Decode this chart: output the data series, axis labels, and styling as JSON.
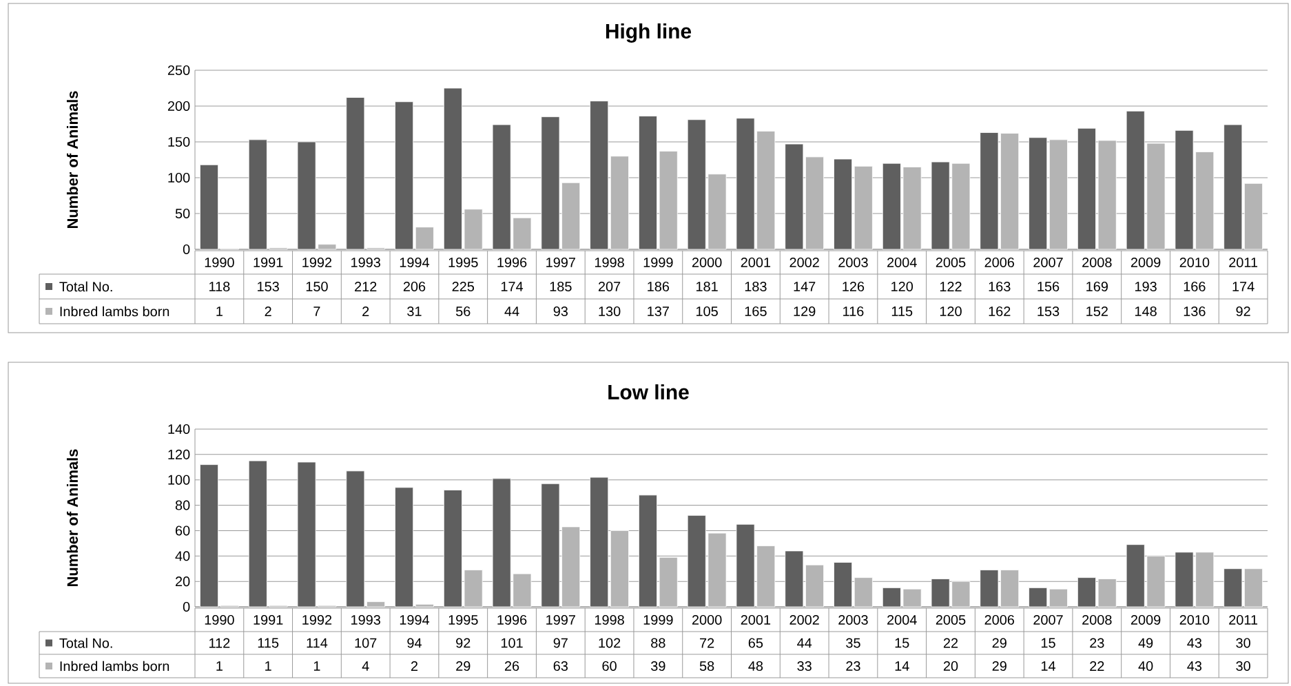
{
  "chart_data": [
    {
      "type": "bar",
      "title": "High line",
      "ylabel": "Number of Animals",
      "categories": [
        "1990",
        "1991",
        "1992",
        "1993",
        "1994",
        "1995",
        "1996",
        "1997",
        "1998",
        "1999",
        "2000",
        "2001",
        "2002",
        "2003",
        "2004",
        "2005",
        "2006",
        "2007",
        "2008",
        "2009",
        "2010",
        "2011"
      ],
      "series": [
        {
          "name": "Total No.",
          "color": "#5f5f5f",
          "values": [
            118,
            153,
            150,
            212,
            206,
            225,
            174,
            185,
            207,
            186,
            181,
            183,
            147,
            126,
            120,
            122,
            163,
            156,
            169,
            193,
            166,
            174
          ]
        },
        {
          "name": "Inbred lambs born",
          "color": "#b4b4b4",
          "values": [
            1,
            2,
            7,
            2,
            31,
            56,
            44,
            93,
            130,
            137,
            105,
            165,
            129,
            116,
            115,
            120,
            162,
            153,
            152,
            148,
            136,
            92
          ]
        }
      ],
      "ylim": [
        0,
        250
      ],
      "yticks": [
        0,
        50,
        100,
        150,
        200,
        250
      ],
      "grid": "y",
      "legend": "bottom",
      "data_labels": true
    },
    {
      "type": "bar",
      "title": "Low line",
      "ylabel": "Number of Animals",
      "categories": [
        "1990",
        "1991",
        "1992",
        "1993",
        "1994",
        "1995",
        "1996",
        "1997",
        "1998",
        "1999",
        "2000",
        "2001",
        "2002",
        "2003",
        "2004",
        "2005",
        "2006",
        "2007",
        "2008",
        "2009",
        "2010",
        "2011"
      ],
      "series": [
        {
          "name": "Total No.",
          "color": "#5f5f5f",
          "values": [
            112,
            115,
            114,
            107,
            94,
            92,
            101,
            97,
            102,
            88,
            72,
            65,
            44,
            35,
            15,
            22,
            29,
            15,
            23,
            49,
            43,
            30
          ]
        },
        {
          "name": "Inbred lambs born",
          "color": "#b4b4b4",
          "values": [
            1,
            1,
            1,
            4,
            2,
            29,
            26,
            63,
            60,
            39,
            58,
            48,
            33,
            23,
            14,
            20,
            29,
            14,
            22,
            40,
            43,
            30
          ]
        }
      ],
      "ylim": [
        0,
        140
      ],
      "yticks": [
        0,
        20,
        40,
        60,
        80,
        100,
        120,
        140
      ],
      "grid": "y",
      "legend": "bottom",
      "data_labels": true
    }
  ]
}
